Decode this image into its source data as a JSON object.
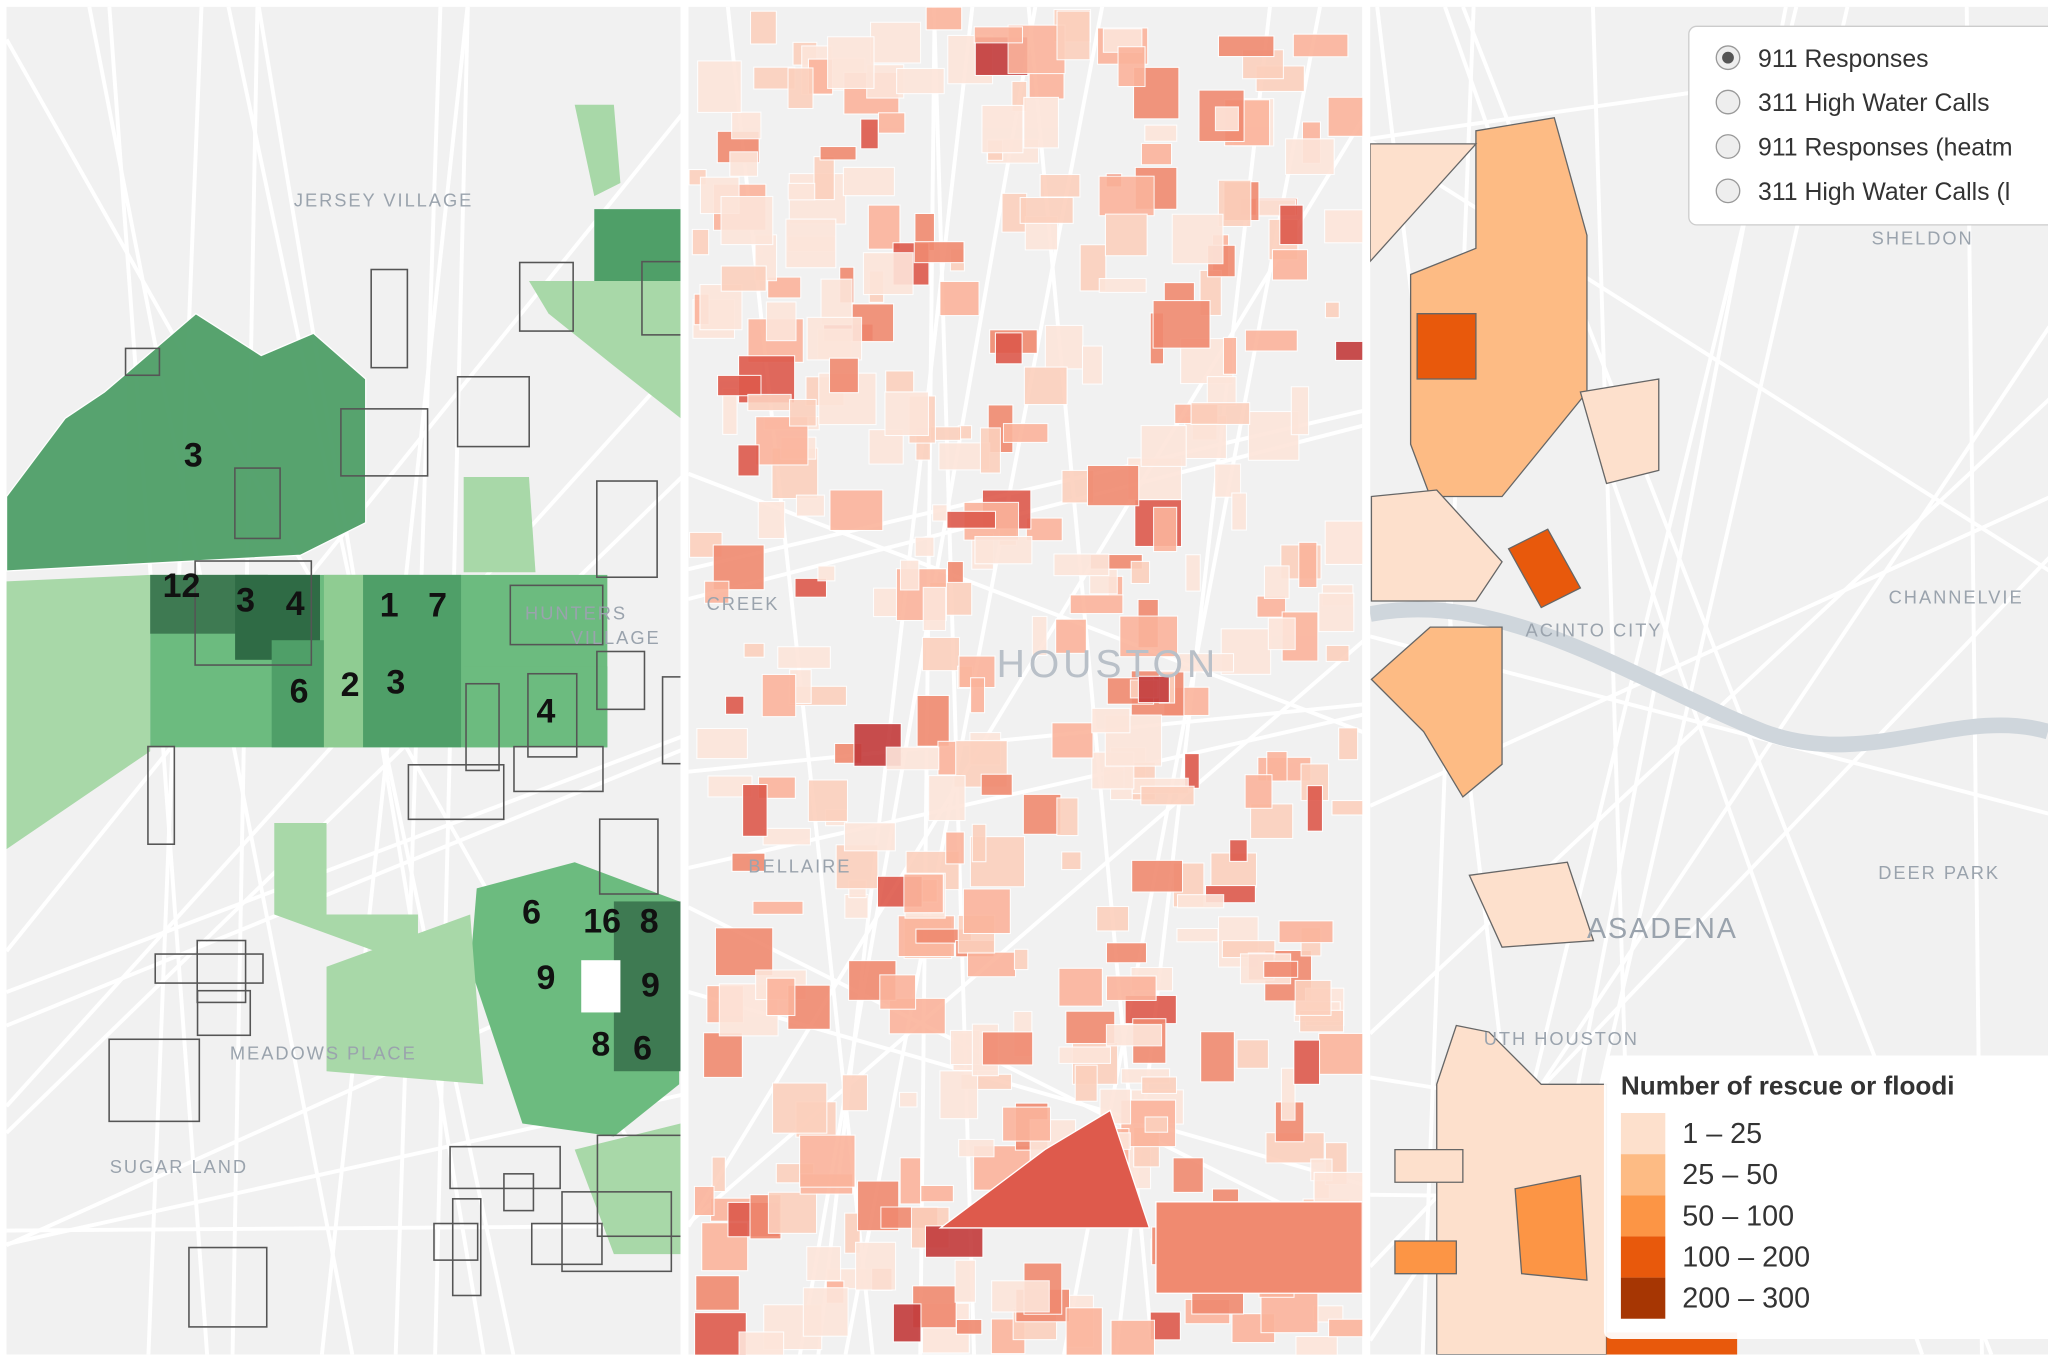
{
  "left_panel": {
    "place_labels": [
      "JERSEY VILLAGE",
      "HUNTERS",
      "VILLAGE",
      "MEADOWS PLACE",
      "SUGAR LAND"
    ],
    "area_counts": [
      3,
      12,
      3,
      4,
      1,
      7,
      6,
      2,
      3,
      4,
      6,
      16,
      8,
      9,
      9,
      8,
      6
    ]
  },
  "middle_panel": {
    "place_labels": [
      "HOUSTON",
      "BELLAIRE",
      "CREEK"
    ]
  },
  "right_panel": {
    "place_labels": [
      "SHELDON",
      "CHANNELVIE",
      "ACINTO CITY",
      "DEER PARK",
      "ASADENA",
      "UTH HOUSTON"
    ],
    "layer_control": {
      "options": [
        "911 Responses",
        "311 High Water Calls",
        "911 Responses (heatm",
        "311 High Water Calls (l"
      ],
      "selected": 0
    },
    "legend": {
      "title": "Number of rescue or floodi",
      "items": [
        {
          "label": "1 – 25",
          "color": "#fde0cc"
        },
        {
          "label": "25 – 50",
          "color": "#fdbb84"
        },
        {
          "label": "50 – 100",
          "color": "#fc9545"
        },
        {
          "label": "100 – 200",
          "color": "#e8590c"
        },
        {
          "label": "200 – 300",
          "color": "#a63603"
        }
      ]
    }
  }
}
